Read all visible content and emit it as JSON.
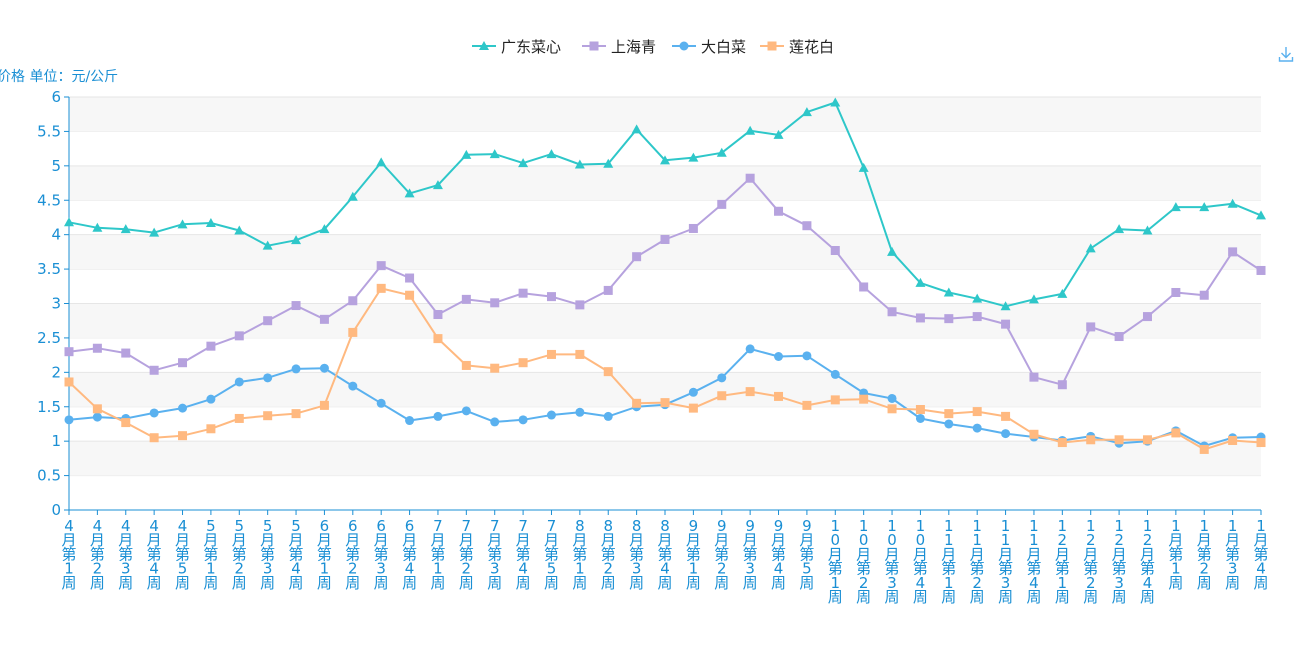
{
  "chart_data": {
    "type": "line",
    "ylabel": "价格 单位：元/公斤",
    "ylim": [
      0,
      6
    ],
    "yticks": [
      "0",
      "0.5",
      "1",
      "1.5",
      "2",
      "2.5",
      "3",
      "3.5",
      "4",
      "4.5",
      "5",
      "5.5",
      "6"
    ],
    "grid": "alternating horizontal bands",
    "legend_position": "top-center",
    "categories": [
      "4月第1周",
      "4月第2周",
      "4月第3周",
      "4月第4周",
      "4月第5周",
      "5月第1周",
      "5月第2周",
      "5月第3周",
      "5月第4周",
      "6月第1周",
      "6月第2周",
      "6月第3周",
      "6月第4周",
      "7月第1周",
      "7月第2周",
      "7月第3周",
      "7月第4周",
      "7月第5周",
      "8月第1周",
      "8月第2周",
      "8月第3周",
      "8月第4周",
      "9月第1周",
      "9月第2周",
      "9月第3周",
      "9月第4周",
      "9月第5周",
      "10月第1周",
      "10月第2周",
      "10月第3周",
      "10月第4周",
      "11月第1周",
      "11月第2周",
      "11月第3周",
      "11月第4周",
      "12月第1周",
      "12月第2周",
      "12月第3周",
      "12月第4周",
      "1月第1周",
      "1月第2周",
      "1月第3周",
      "1月第4周"
    ],
    "series": [
      {
        "name": "广东菜心",
        "color": "#2ec7c9",
        "marker": "triangle",
        "values": [
          4.18,
          4.1,
          4.08,
          4.03,
          4.15,
          4.17,
          4.06,
          3.84,
          3.92,
          4.08,
          4.55,
          5.05,
          4.6,
          4.72,
          5.16,
          5.17,
          5.04,
          5.17,
          5.02,
          5.03,
          5.53,
          5.08,
          5.12,
          5.19,
          5.51,
          5.45,
          5.78,
          5.92,
          4.97,
          3.75,
          3.3,
          3.16,
          3.07,
          2.96,
          3.06,
          3.14,
          3.8,
          4.08,
          4.06,
          4.4,
          4.4,
          4.45,
          4.28
        ]
      },
      {
        "name": "上海青",
        "color": "#b6a2de",
        "marker": "square",
        "values": [
          2.3,
          2.35,
          2.28,
          2.03,
          2.14,
          2.38,
          2.53,
          2.75,
          2.97,
          2.77,
          3.04,
          3.55,
          3.37,
          2.84,
          3.06,
          3.01,
          3.15,
          3.1,
          2.98,
          3.19,
          3.68,
          3.93,
          4.09,
          4.44,
          4.82,
          4.34,
          4.13,
          3.77,
          3.24,
          2.88,
          2.79,
          2.78,
          2.81,
          2.7,
          1.93,
          1.82,
          2.66,
          2.52,
          2.81,
          3.16,
          3.12,
          3.75,
          3.48
        ]
      },
      {
        "name": "大白菜",
        "color": "#5ab1ef",
        "marker": "circle",
        "values": [
          1.31,
          1.35,
          1.33,
          1.41,
          1.48,
          1.61,
          1.86,
          1.92,
          2.05,
          2.06,
          1.8,
          1.55,
          1.3,
          1.36,
          1.44,
          1.28,
          1.31,
          1.38,
          1.42,
          1.36,
          1.5,
          1.53,
          1.71,
          1.92,
          2.34,
          2.23,
          2.24,
          1.97,
          1.7,
          1.62,
          1.33,
          1.25,
          1.19,
          1.11,
          1.06,
          1.01,
          1.07,
          0.97,
          1.0,
          1.15,
          0.93,
          1.05,
          1.06
        ]
      },
      {
        "name": "莲花白",
        "color": "#ffb980",
        "marker": "square",
        "values": [
          1.86,
          1.47,
          1.27,
          1.05,
          1.08,
          1.18,
          1.33,
          1.37,
          1.4,
          1.52,
          2.58,
          3.22,
          3.12,
          2.49,
          2.1,
          2.06,
          2.14,
          2.26,
          2.26,
          2.01,
          1.55,
          1.56,
          1.48,
          1.66,
          1.72,
          1.65,
          1.52,
          1.6,
          1.61,
          1.47,
          1.46,
          1.4,
          1.43,
          1.36,
          1.1,
          0.98,
          1.02,
          1.02,
          1.02,
          1.12,
          0.88,
          1.01,
          0.98
        ]
      }
    ]
  },
  "toolbar": {
    "icon": "download-icon",
    "color": "#5ab1ef"
  },
  "colors": {
    "axis": "#1a8fd4",
    "band": "#f7f7f7",
    "gridline": "#e6e6e6"
  }
}
